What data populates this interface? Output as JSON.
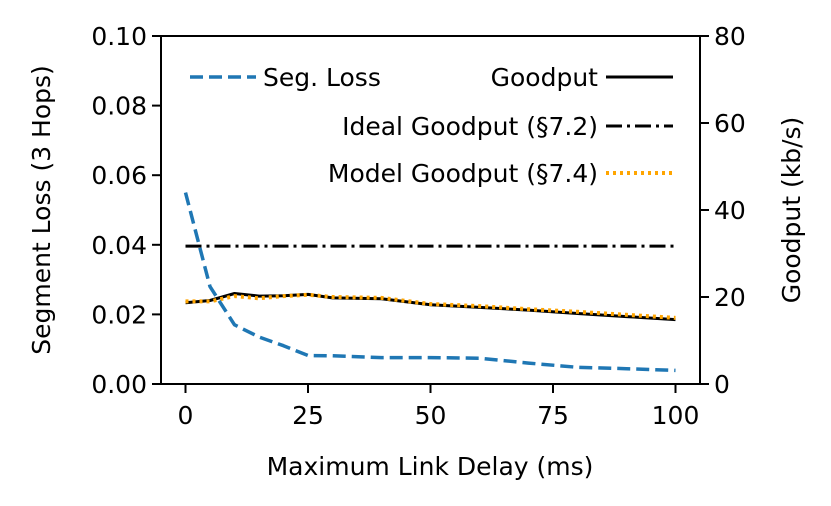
{
  "chart_data": {
    "type": "line",
    "xlabel": "Maximum Link Delay (ms)",
    "ylabel_left": "Segment Loss (3 Hops)",
    "ylabel_right": "Goodput (kb/s)",
    "xlim": [
      -5,
      105
    ],
    "ylim_left": [
      0,
      0.1
    ],
    "ylim_right": [
      0,
      80
    ],
    "x_ticks": [
      0,
      25,
      50,
      75,
      100
    ],
    "x_tick_labels": [
      "0",
      "25",
      "50",
      "75",
      "100"
    ],
    "y_left_ticks": [
      0,
      0.02,
      0.04,
      0.06,
      0.08,
      0.1
    ],
    "y_left_tick_labels": [
      "0.00",
      "0.02",
      "0.04",
      "0.06",
      "0.08",
      "0.10"
    ],
    "y_right_ticks": [
      0,
      20,
      40,
      60,
      80
    ],
    "y_right_tick_labels": [
      "0",
      "20",
      "40",
      "60",
      "80"
    ],
    "grid": false,
    "legend_position": "top",
    "series": [
      {
        "name": "Seg. Loss",
        "axis": "left",
        "color": "#1f77b4",
        "style": "dashed",
        "x": [
          0,
          5,
          10,
          15,
          20,
          25,
          30,
          40,
          50,
          60,
          70,
          80,
          90,
          100
        ],
        "y": [
          0.055,
          0.028,
          0.017,
          0.0135,
          0.011,
          0.0082,
          0.0081,
          0.0076,
          0.0076,
          0.0074,
          0.006,
          0.0048,
          0.0044,
          0.0039
        ]
      },
      {
        "name": "Goodput",
        "axis": "right",
        "color": "#000000",
        "style": "solid",
        "x": [
          0,
          5,
          10,
          15,
          20,
          25,
          30,
          40,
          50,
          60,
          70,
          80,
          90,
          100
        ],
        "y": [
          18.7,
          19.2,
          20.8,
          20.2,
          20.3,
          20.6,
          19.8,
          19.6,
          18.2,
          17.6,
          17.0,
          16.2,
          15.5,
          14.8
        ]
      },
      {
        "name": "Ideal Goodput (§7.2)",
        "axis": "right",
        "color": "#000000",
        "style": "dashdot",
        "x": [
          0,
          100
        ],
        "y": [
          31.7,
          31.7
        ]
      },
      {
        "name": "Model Goodput (§7.4)",
        "axis": "right",
        "color": "#ffa500",
        "style": "dotted",
        "x": [
          0,
          5,
          10,
          15,
          20,
          25,
          30,
          40,
          50,
          60,
          70,
          80,
          90,
          100
        ],
        "y": [
          19.0,
          19.0,
          20.2,
          19.7,
          20.2,
          20.5,
          20.0,
          19.8,
          18.4,
          17.9,
          17.2,
          16.6,
          15.9,
          15.2
        ]
      }
    ]
  }
}
